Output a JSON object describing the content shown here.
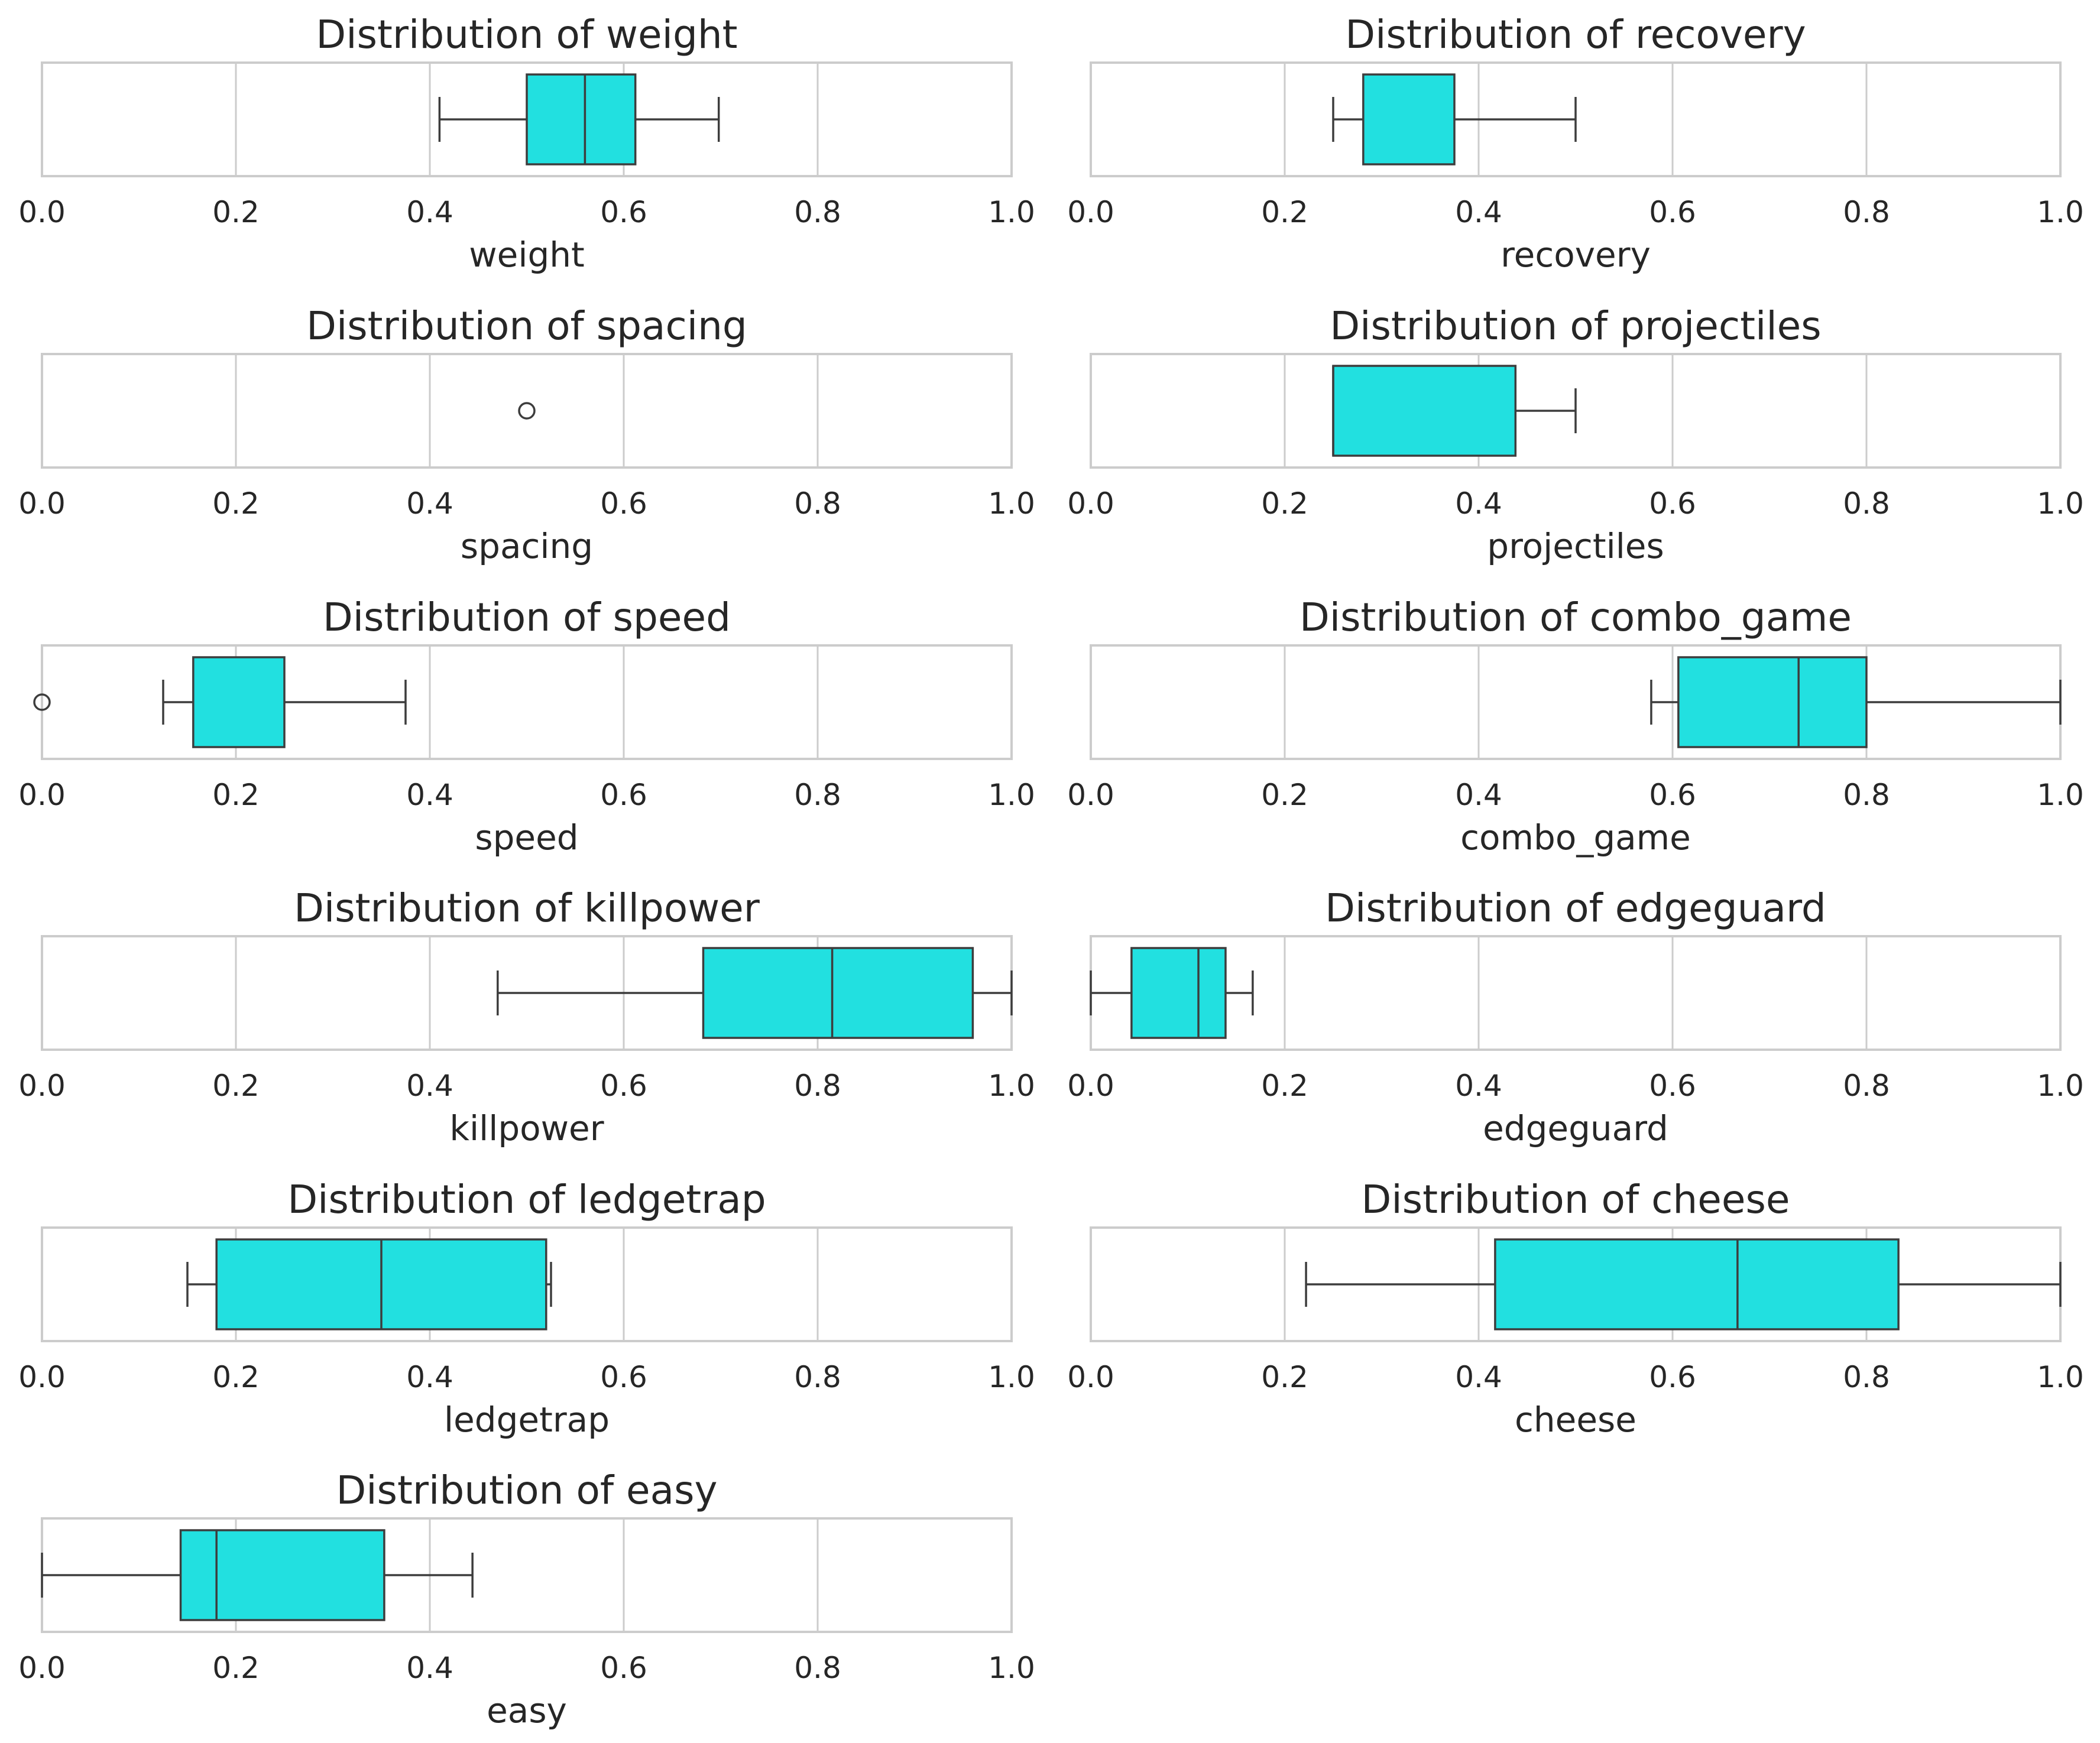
{
  "style": {
    "box_fill": "#22e0e0",
    "line_color": "#3d3d3d",
    "grid_color": "#cccccc",
    "frame_color": "#cccccc",
    "text_color": "#262626"
  },
  "chart_data": [
    {
      "type": "box",
      "title": "Distribution of weight",
      "xlabel": "weight",
      "xlim": [
        0,
        1
      ],
      "xticks": [
        "0.0",
        "0.2",
        "0.4",
        "0.6",
        "0.8",
        "1.0"
      ],
      "grid": true,
      "box": {
        "whisker_low": 0.41,
        "q1": 0.5,
        "median": 0.56,
        "q3": 0.612,
        "whisker_high": 0.698,
        "outliers": []
      }
    },
    {
      "type": "box",
      "title": "Distribution of recovery",
      "xlabel": "recovery",
      "xlim": [
        0,
        1
      ],
      "xticks": [
        "0.0",
        "0.2",
        "0.4",
        "0.6",
        "0.8",
        "1.0"
      ],
      "grid": true,
      "box": {
        "whisker_low": 0.25,
        "q1": 0.281,
        "median": null,
        "q3": 0.375,
        "whisker_high": 0.5,
        "outliers": []
      }
    },
    {
      "type": "box",
      "title": "Distribution of spacing",
      "xlabel": "spacing",
      "xlim": [
        0,
        1
      ],
      "xticks": [
        "0.0",
        "0.2",
        "0.4",
        "0.6",
        "0.8",
        "1.0"
      ],
      "grid": true,
      "box": null,
      "outliers": [
        0.5
      ]
    },
    {
      "type": "box",
      "title": "Distribution of projectiles",
      "xlabel": "projectiles",
      "xlim": [
        0,
        1
      ],
      "xticks": [
        "0.0",
        "0.2",
        "0.4",
        "0.6",
        "0.8",
        "1.0"
      ],
      "grid": true,
      "box": {
        "whisker_low": 0.25,
        "q1": 0.25,
        "median": 0.25,
        "q3": 0.438,
        "whisker_high": 0.5,
        "outliers": []
      }
    },
    {
      "type": "box",
      "title": "Distribution of speed",
      "xlabel": "speed",
      "xlim": [
        0,
        1
      ],
      "xticks": [
        "0.0",
        "0.2",
        "0.4",
        "0.6",
        "0.8",
        "1.0"
      ],
      "grid": true,
      "box": {
        "whisker_low": 0.125,
        "q1": 0.156,
        "median": null,
        "q3": 0.25,
        "whisker_high": 0.375,
        "outliers": [
          0.0
        ]
      }
    },
    {
      "type": "box",
      "title": "Distribution of combo_game",
      "xlabel": "combo_game",
      "xlim": [
        0,
        1
      ],
      "xticks": [
        "0.0",
        "0.2",
        "0.4",
        "0.6",
        "0.8",
        "1.0"
      ],
      "grid": true,
      "box": {
        "whisker_low": 0.578,
        "q1": 0.606,
        "median": 0.73,
        "q3": 0.8,
        "whisker_high": 1.0,
        "outliers": []
      }
    },
    {
      "type": "box",
      "title": "Distribution of killpower",
      "xlabel": "killpower",
      "xlim": [
        0,
        1
      ],
      "xticks": [
        "0.0",
        "0.2",
        "0.4",
        "0.6",
        "0.8",
        "1.0"
      ],
      "grid": true,
      "box": {
        "whisker_low": 0.47,
        "q1": 0.682,
        "median": 0.815,
        "q3": 0.96,
        "whisker_high": 1.0,
        "outliers": []
      }
    },
    {
      "type": "box",
      "title": "Distribution of edgeguard",
      "xlabel": "edgeguard",
      "xlim": [
        0,
        1
      ],
      "xticks": [
        "0.0",
        "0.2",
        "0.4",
        "0.6",
        "0.8",
        "1.0"
      ],
      "grid": true,
      "box": {
        "whisker_low": 0.0,
        "q1": 0.042,
        "median": 0.111,
        "q3": 0.139,
        "whisker_high": 0.167,
        "outliers": []
      }
    },
    {
      "type": "box",
      "title": "Distribution of ledgetrap",
      "xlabel": "ledgetrap",
      "xlim": [
        0,
        1
      ],
      "xticks": [
        "0.0",
        "0.2",
        "0.4",
        "0.6",
        "0.8",
        "1.0"
      ],
      "grid": true,
      "box": {
        "whisker_low": 0.15,
        "q1": 0.18,
        "median": 0.35,
        "q3": 0.52,
        "whisker_high": 0.525,
        "outliers": []
      }
    },
    {
      "type": "box",
      "title": "Distribution of cheese",
      "xlabel": "cheese",
      "xlim": [
        0,
        1
      ],
      "xticks": [
        "0.0",
        "0.2",
        "0.4",
        "0.6",
        "0.8",
        "1.0"
      ],
      "grid": true,
      "box": {
        "whisker_low": 0.222,
        "q1": 0.417,
        "median": 0.667,
        "q3": 0.833,
        "whisker_high": 1.0,
        "outliers": []
      }
    },
    {
      "type": "box",
      "title": "Distribution of easy",
      "xlabel": "easy",
      "xlim": [
        0,
        1
      ],
      "xticks": [
        "0.0",
        "0.2",
        "0.4",
        "0.6",
        "0.8",
        "1.0"
      ],
      "grid": true,
      "box": {
        "whisker_low": 0.0,
        "q1": 0.143,
        "median": 0.18,
        "q3": 0.353,
        "whisker_high": 0.444,
        "outliers": []
      }
    }
  ]
}
